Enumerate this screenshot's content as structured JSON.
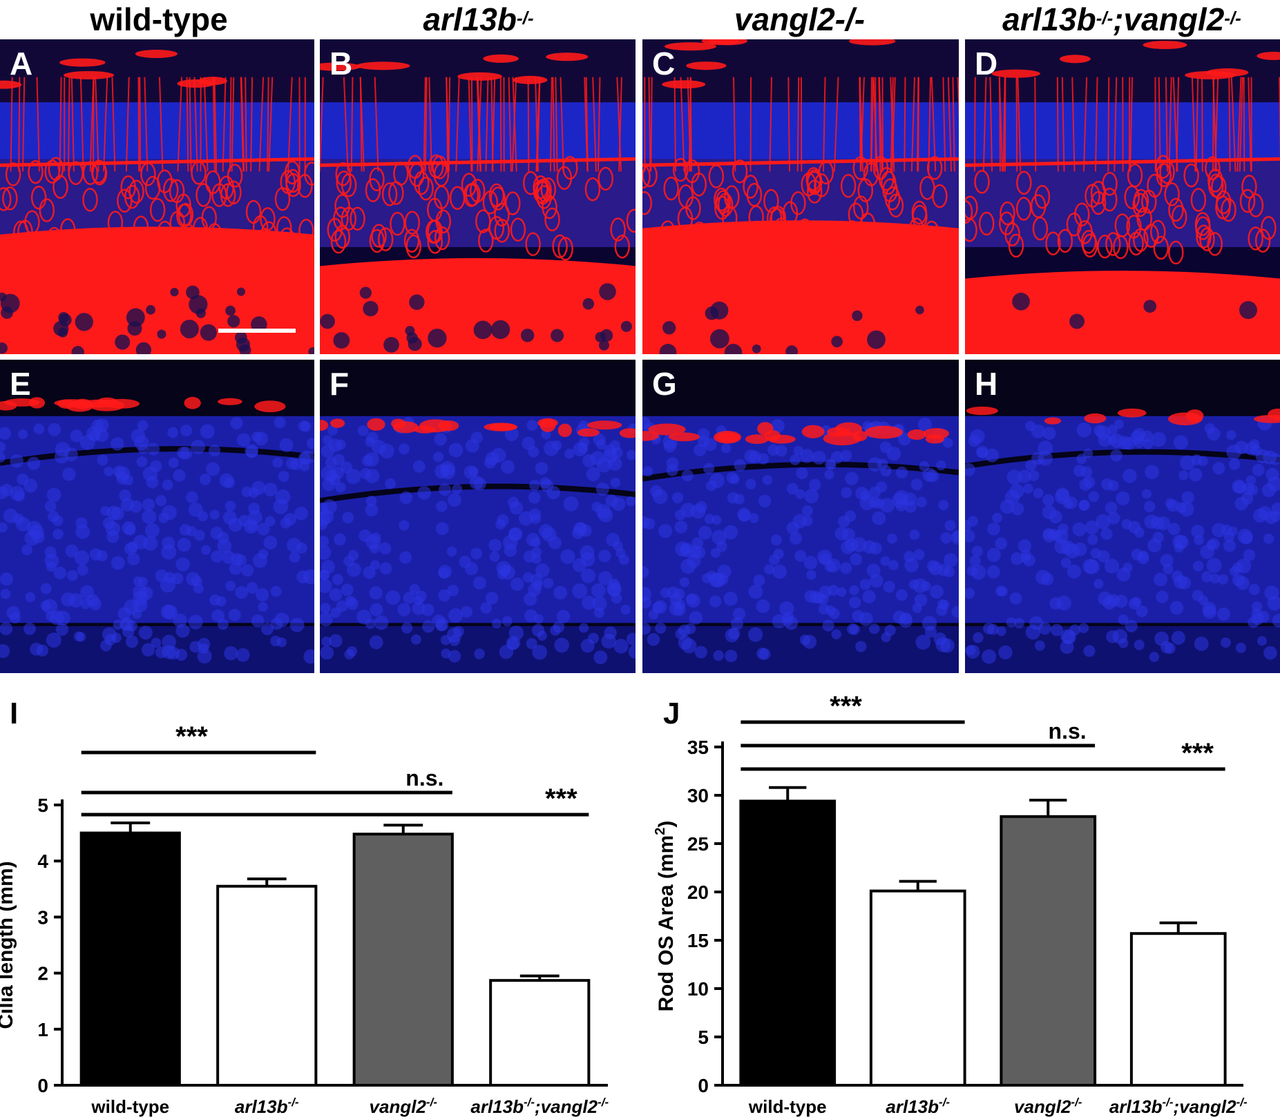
{
  "columns": [
    {
      "main": "wild-type",
      "sup": "",
      "tail": "",
      "sup2": "",
      "italic": false
    },
    {
      "main": "arl13b",
      "sup": "-/-",
      "tail": "",
      "sup2": "",
      "italic": true
    },
    {
      "main": "vangl2-/-",
      "sup": "",
      "tail": "",
      "sup2": "",
      "italic": true
    },
    {
      "main": "arl13b",
      "sup": "-/-",
      "tail": ";vangl2",
      "sup2": "-/-",
      "italic": true
    }
  ],
  "panels": {
    "row1": [
      "A",
      "B",
      "C",
      "D"
    ],
    "row2": [
      "E",
      "F",
      "G",
      "H"
    ]
  },
  "colors": {
    "red_stain": "#ff1a1a",
    "blue_stain": "#1e2ad8",
    "bar_wildtype": "#000000",
    "bar_arl13b": "#ffffff",
    "bar_vangl2": "#5f5f5f",
    "bar_double": "#ffffff"
  },
  "chart_data": [
    {
      "type": "bar",
      "panel_letter": "I",
      "ylabel": "Cilia length (mm)",
      "categories": [
        {
          "main": "wild-type",
          "sup": "",
          "tail": "",
          "sup2": "",
          "italic": false
        },
        {
          "main": "arl13b",
          "sup": "-/-",
          "tail": "",
          "sup2": "",
          "italic": true
        },
        {
          "main": "vangl2",
          "sup": "-/-",
          "tail": "",
          "sup2": "",
          "italic": true
        },
        {
          "main": "arl13b",
          "sup": "-/-",
          "tail": ";vangl2",
          "sup2": "-/-",
          "italic": true
        }
      ],
      "values": [
        4.5,
        3.55,
        4.48,
        1.87
      ],
      "errors": [
        0.18,
        0.13,
        0.16,
        0.08
      ],
      "ylim": [
        0,
        5
      ],
      "yticks": [
        0,
        1,
        2,
        3,
        4,
        5
      ],
      "significance": [
        {
          "from": 0,
          "to": 1,
          "label": "***"
        },
        {
          "from": 0,
          "to": 2,
          "label": "n.s."
        },
        {
          "from": 0,
          "to": 3,
          "label": "***"
        }
      ]
    },
    {
      "type": "bar",
      "panel_letter": "J",
      "ylabel": "Rod OS Area (mm",
      "ylabel_sup": "2",
      "ylabel_tail": ")",
      "categories": [
        {
          "main": "wild-type",
          "sup": "",
          "tail": "",
          "sup2": "",
          "italic": false
        },
        {
          "main": "arl13b",
          "sup": "-/-",
          "tail": "",
          "sup2": "",
          "italic": true
        },
        {
          "main": "vangl2",
          "sup": "-/-",
          "tail": "",
          "sup2": "",
          "italic": true
        },
        {
          "main": "arl13b",
          "sup": "-/-",
          "tail": ";vangl2",
          "sup2": "-/-",
          "italic": true
        }
      ],
      "values": [
        29.4,
        20.1,
        27.8,
        15.7
      ],
      "errors": [
        1.4,
        1.0,
        1.7,
        1.1
      ],
      "ylim": [
        0,
        35
      ],
      "yticks": [
        0,
        5,
        10,
        15,
        20,
        25,
        30,
        35
      ],
      "significance": [
        {
          "from": 0,
          "to": 1,
          "label": "***"
        },
        {
          "from": 0,
          "to": 2,
          "label": "n.s."
        },
        {
          "from": 0,
          "to": 3,
          "label": "***"
        }
      ]
    }
  ]
}
